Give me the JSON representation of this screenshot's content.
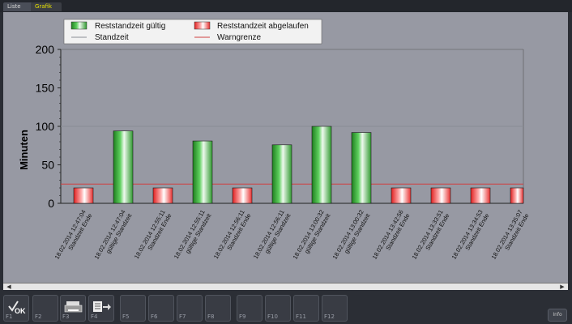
{
  "tabs": [
    {
      "label": "Liste"
    },
    {
      "label": "Grafik"
    }
  ],
  "legend": {
    "valid": "Reststandzeit gültig",
    "expired": "Reststandzeit abgelaufen",
    "standzeit": "Standzeit",
    "warn": "Warngrenze"
  },
  "chart_data": {
    "type": "bar",
    "ylabel": "Minuten",
    "ylim": [
      0,
      200
    ],
    "yticks": [
      0,
      50,
      100,
      150,
      200
    ],
    "standzeit_line": 100,
    "warngrenze_line": 25,
    "colors": {
      "valid": "#2a9a2a",
      "expired": "#e83030",
      "standzeit": "#8a8d95",
      "warn": "#d04040"
    },
    "bars": [
      {
        "date": "18.02.2014 12:47:04",
        "label": "Standzeit Ende",
        "value": 20,
        "status": "expired"
      },
      {
        "date": "18.02.2014 12:47:04",
        "label": "gültige Standzeit",
        "value": 94,
        "status": "valid"
      },
      {
        "date": "18.02.2014 12:55:11",
        "label": "Standzeit Ende",
        "value": 20,
        "status": "expired"
      },
      {
        "date": "18.02.2014 12:55:11",
        "label": "gültige Standzeit",
        "value": 81,
        "status": "valid"
      },
      {
        "date": "18.02.2014 12:56:11",
        "label": "Standzeit Ende",
        "value": 20,
        "status": "expired"
      },
      {
        "date": "18.02.2014 12:56:11",
        "label": "gültige Standzeit",
        "value": 76,
        "status": "valid"
      },
      {
        "date": "18.02.2014 13:00:32",
        "label": "gültige Standzeit",
        "value": 100,
        "status": "valid"
      },
      {
        "date": "18.02.2014 13:00:32",
        "label": "gültige Standzeit",
        "value": 92,
        "status": "valid"
      },
      {
        "date": "18.02.2014 13:42:56",
        "label": "Standzeit Ende",
        "value": 20,
        "status": "expired"
      },
      {
        "date": "18.02.2014 13:33:51",
        "label": "Standzeit Ende",
        "value": 20,
        "status": "expired"
      },
      {
        "date": "18.02.2014 13:34:53",
        "label": "Standzeit Ende",
        "value": 20,
        "status": "expired"
      },
      {
        "date": "18.02.2014 13:35:07",
        "label": "Standzeit Ende",
        "value": 20,
        "status": "expired"
      }
    ]
  },
  "fkeys": [
    {
      "label": "F1",
      "icon": "ok-icon"
    },
    {
      "label": "F2",
      "icon": ""
    },
    {
      "label": "F3",
      "icon": "printer-icon"
    },
    {
      "label": "F4",
      "icon": "export-icon"
    },
    {
      "label": "F5",
      "icon": ""
    },
    {
      "label": "F6",
      "icon": ""
    },
    {
      "label": "F7",
      "icon": ""
    },
    {
      "label": "F8",
      "icon": ""
    },
    {
      "label": "F9",
      "icon": ""
    },
    {
      "label": "F10",
      "icon": ""
    },
    {
      "label": "F11",
      "icon": ""
    },
    {
      "label": "F12",
      "icon": ""
    }
  ],
  "info_label": "Info"
}
